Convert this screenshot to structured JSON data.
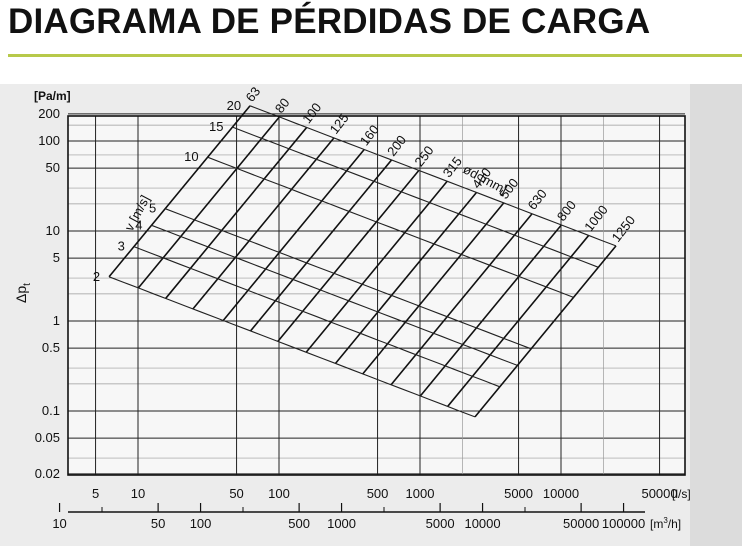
{
  "title": "DIAGRAMA DE PÉRDIDAS DE CARGA",
  "colors": {
    "accent_rule": "#b7c94a",
    "scan_background": "#eaeaea",
    "ink": "#111111"
  },
  "chart_data": {
    "type": "line",
    "title": "DIAGRAMA DE PÉRDIDAS DE CARGA",
    "y_axis": {
      "label": "Δp",
      "label_subscript": "t",
      "unit": "[Pa/m]",
      "scale": "log",
      "ylim": [
        0.02,
        200
      ],
      "ticks": [
        "200",
        "100",
        "50",
        "10",
        "5",
        "1",
        "0.5",
        "0.1",
        "0.05",
        "0.02"
      ]
    },
    "x_axis_primary": {
      "unit": "[l/s]",
      "scale": "log",
      "ticks": [
        "5",
        "10",
        "50",
        "100",
        "500",
        "1000",
        "5000",
        "10000",
        "50000"
      ]
    },
    "x_axis_secondary": {
      "unit": "[m³/h]",
      "unit_base": "[m",
      "unit_sup": "3",
      "unit_tail": "/h]",
      "scale": "log",
      "ticks": [
        "10",
        "50",
        "100",
        "500",
        "1000",
        "5000",
        "10000",
        "50000",
        "100000"
      ]
    },
    "grid": true,
    "legend": "none",
    "duct_diameter_family": {
      "label": "ød [mm]",
      "values": [
        "63",
        "80",
        "100",
        "125",
        "160",
        "200",
        "250",
        "315",
        "400",
        "500",
        "630",
        "800",
        "1000",
        "1250"
      ]
    },
    "velocity_family": {
      "label": "v [m/s]",
      "values": [
        "2",
        "3",
        "4",
        "5",
        "10",
        "15",
        "20"
      ]
    },
    "series_note": "friction-loss lines drawn per duct diameter; constant-velocity lines crossing them"
  }
}
